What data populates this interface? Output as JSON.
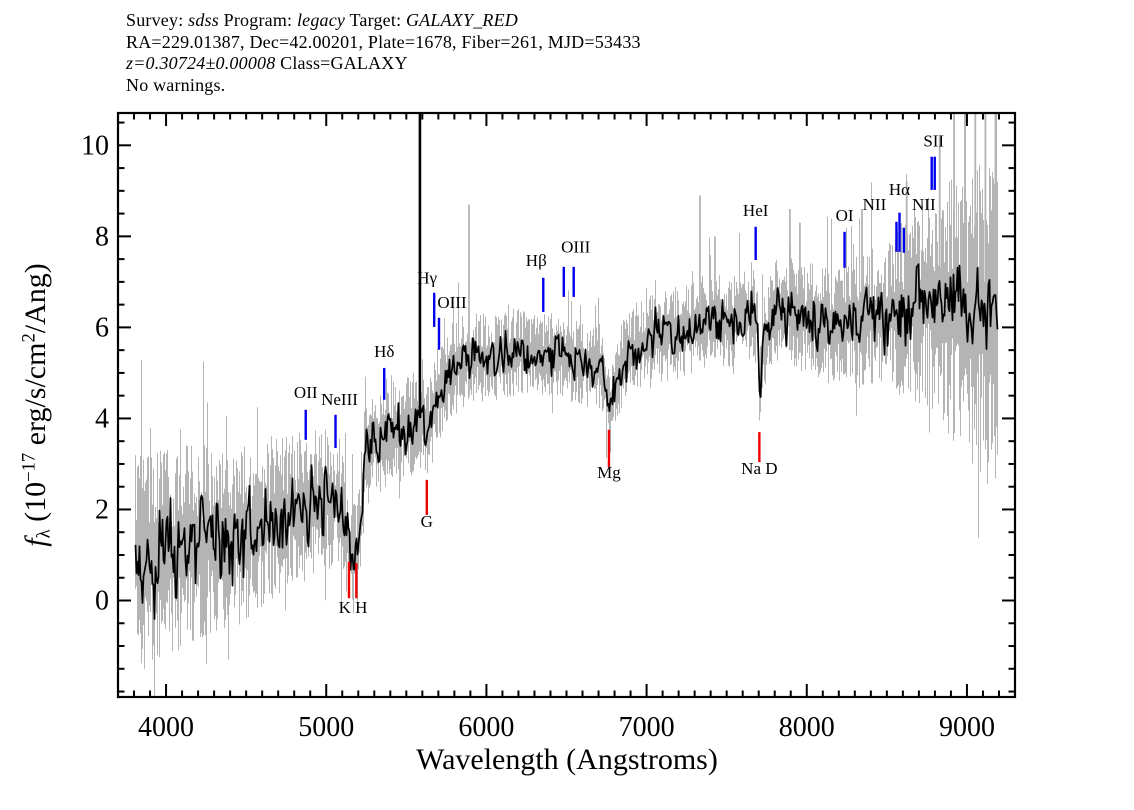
{
  "header": {
    "line1_segments": [
      {
        "text": "Survey: "
      },
      {
        "text": "sdss"
      },
      {
        "text": " Program: "
      },
      {
        "text": "legacy"
      },
      {
        "text": " Target: "
      },
      {
        "text": "GALAXY_RED"
      }
    ],
    "line2": "RA=229.01387, Dec=42.00201, Plate=1678, Fiber=261, MJD=53433",
    "line3_segments": [
      {
        "text": "z=0.30724±0.00008"
      },
      {
        "text": " Class=GALAXY"
      }
    ],
    "line4": "No warnings."
  },
  "chart_data": {
    "type": "line",
    "xlabel": "Wavelength (Angstroms)",
    "ylabel": "f_λ (10^−17 erg/s/cm^2/Ang)",
    "ylabel_segments": [
      {
        "t": "f"
      },
      {
        "t": "λ"
      },
      {
        "t": " (10"
      },
      {
        "t": "−17"
      },
      {
        "t": " erg/s/cm"
      },
      {
        "t": "2"
      },
      {
        "t": "/Ang)"
      }
    ],
    "xlim": [
      3700,
      9300
    ],
    "ylim": [
      -2.12,
      10.71
    ],
    "x_major_ticks": [
      4000,
      5000,
      6000,
      7000,
      8000,
      9000
    ],
    "x_tick_labels": [
      "4000",
      "5000",
      "6000",
      "7000",
      "8000",
      "9000"
    ],
    "x_minor_step": 100,
    "y_major_ticks": [
      0,
      2,
      4,
      6,
      8,
      10
    ],
    "y_tick_labels": [
      "0",
      "2",
      "4",
      "6",
      "8",
      "10"
    ],
    "y_minor_step": 0.5,
    "grid": false,
    "data_wavelength_range": [
      3800,
      9190
    ],
    "series": [
      {
        "name": "observed flux",
        "color": "#000000"
      },
      {
        "name": "flux uncertainty band",
        "color": "#b4b4b4"
      }
    ],
    "continuum_anchors": [
      [
        3740,
        0.8
      ],
      [
        3850,
        0.95
      ],
      [
        4000,
        1.05
      ],
      [
        4150,
        1.2
      ],
      [
        4300,
        1.4
      ],
      [
        4450,
        1.5
      ],
      [
        4600,
        1.65
      ],
      [
        4750,
        1.95
      ],
      [
        4900,
        2.1
      ],
      [
        5000,
        2.25
      ],
      [
        5080,
        2.1
      ],
      [
        5130,
        1.4
      ],
      [
        5160,
        0.95
      ],
      [
        5190,
        1.05
      ],
      [
        5215,
        1.9
      ],
      [
        5245,
        3.3
      ],
      [
        5320,
        3.6
      ],
      [
        5450,
        3.8
      ],
      [
        5560,
        3.95
      ],
      [
        5605,
        4.05
      ],
      [
        5640,
        3.75
      ],
      [
        5690,
        4.45
      ],
      [
        5770,
        5.05
      ],
      [
        5850,
        5.25
      ],
      [
        5950,
        5.35
      ],
      [
        6050,
        5.3
      ],
      [
        6150,
        5.45
      ],
      [
        6250,
        5.45
      ],
      [
        6350,
        5.35
      ],
      [
        6450,
        5.4
      ],
      [
        6550,
        5.25
      ],
      [
        6700,
        5.15
      ],
      [
        6742,
        4.7
      ],
      [
        6765,
        4.05
      ],
      [
        6790,
        4.7
      ],
      [
        6850,
        5.3
      ],
      [
        6950,
        5.6
      ],
      [
        7050,
        5.75
      ],
      [
        7150,
        5.85
      ],
      [
        7250,
        5.95
      ],
      [
        7350,
        6.1
      ],
      [
        7450,
        6.15
      ],
      [
        7550,
        6.2
      ],
      [
        7650,
        6.4
      ],
      [
        7692,
        6.1
      ],
      [
        7704,
        4.15
      ],
      [
        7718,
        5.6
      ],
      [
        7800,
        6.35
      ],
      [
        7900,
        6.3
      ],
      [
        8000,
        6.2
      ],
      [
        8100,
        6.15
      ],
      [
        8200,
        6.05
      ],
      [
        8300,
        6.15
      ],
      [
        8400,
        6.25
      ],
      [
        8500,
        6.3
      ],
      [
        8600,
        6.45
      ],
      [
        8700,
        6.55
      ],
      [
        8780,
        6.6
      ],
      [
        8860,
        6.45
      ],
      [
        8950,
        6.35
      ],
      [
        9050,
        6.3
      ],
      [
        9150,
        6.2
      ],
      [
        9190,
        6.1
      ]
    ],
    "flux_noise_sigma": [
      [
        3740,
        0.7
      ],
      [
        4100,
        0.6
      ],
      [
        4500,
        0.55
      ],
      [
        4900,
        0.45
      ],
      [
        5250,
        0.35
      ],
      [
        5700,
        0.3
      ],
      [
        6300,
        0.28
      ],
      [
        7000,
        0.28
      ],
      [
        7600,
        0.3
      ],
      [
        8100,
        0.33
      ],
      [
        8500,
        0.42
      ],
      [
        8780,
        0.55
      ],
      [
        9000,
        0.55
      ],
      [
        9190,
        0.6
      ]
    ],
    "error_band_sigma": [
      [
        3740,
        1.7
      ],
      [
        4100,
        1.45
      ],
      [
        4500,
        1.3
      ],
      [
        4900,
        1.05
      ],
      [
        5250,
        0.85
      ],
      [
        5700,
        0.7
      ],
      [
        6300,
        0.6
      ],
      [
        7000,
        0.65
      ],
      [
        7600,
        0.7
      ],
      [
        8100,
        0.85
      ],
      [
        8500,
        1.1
      ],
      [
        8800,
        1.6
      ],
      [
        9000,
        2.1
      ],
      [
        9190,
        2.4
      ]
    ],
    "sky_residual_spikes": [
      [
        5891,
        8.7
      ],
      [
        7333,
        8.9
      ],
      [
        7427,
        8.0
      ],
      [
        7895,
        8.6
      ],
      [
        7957,
        8.3
      ],
      [
        8345,
        8.6
      ],
      [
        8624,
        9.2
      ],
      [
        8830,
        10.2
      ],
      [
        8920,
        11.5
      ],
      [
        8988,
        11.5
      ],
      [
        9052,
        11.3
      ],
      [
        9115,
        11.5
      ],
      [
        9178,
        11.0
      ]
    ],
    "sky_line_spike": {
      "wavelength": 5585,
      "top_flux": 11
    },
    "marker_colors": {
      "emission": "#0000ee",
      "absorption": "#ee0000"
    },
    "line_markers": [
      {
        "label": "OII",
        "type": "emission",
        "wavelength": 4872,
        "tick_flux": [
          4.19,
          3.53
        ],
        "label_flux": 4.45,
        "label_dx": 0
      },
      {
        "label": "NeIII",
        "type": "emission",
        "wavelength": 5058,
        "tick_flux": [
          4.08,
          3.35
        ],
        "label_flux": 4.3,
        "label_dx": 4
      },
      {
        "label": "Hδ",
        "type": "emission",
        "wavelength": 5362,
        "tick_flux": [
          5.11,
          4.41
        ],
        "label_flux": 5.35,
        "label_dx": 0
      },
      {
        "label": "Hγ",
        "type": "emission",
        "wavelength": 5674,
        "tick_flux": [
          6.76,
          6.01
        ],
        "label_flux": 6.96,
        "label_dx": -7
      },
      {
        "label": "OIII",
        "type": "emission",
        "wavelength": 5704,
        "tick_flux": [
          6.21,
          5.51
        ],
        "label_flux": 6.43,
        "label_dx": 13
      },
      {
        "label": "Hβ",
        "type": "emission",
        "wavelength": 6355,
        "tick_flux": [
          7.09,
          6.34
        ],
        "label_flux": 7.35,
        "label_dx": -7
      },
      {
        "label": "",
        "type": "emission",
        "wavelength": 6483,
        "tick_flux": [
          7.33,
          6.67
        ],
        "label_flux": 0,
        "label_dx": 0
      },
      {
        "label": "OIII",
        "type": "emission",
        "wavelength": 6545,
        "tick_flux": [
          7.33,
          6.67
        ],
        "label_flux": 7.64,
        "label_dx": 2
      },
      {
        "label": "HeI",
        "type": "emission",
        "wavelength": 7681,
        "tick_flux": [
          8.21,
          7.48
        ],
        "label_flux": 8.45,
        "label_dx": 0
      },
      {
        "label": "OI",
        "type": "emission",
        "wavelength": 8236,
        "tick_flux": [
          8.1,
          7.31
        ],
        "label_flux": 8.34,
        "label_dx": 0
      },
      {
        "label": "NII",
        "type": "emission",
        "wavelength": 8560,
        "tick_flux": [
          8.32,
          7.66
        ],
        "label_flux": 8.58,
        "label_dx": -22
      },
      {
        "label": "Hα",
        "type": "emission",
        "wavelength": 8579,
        "tick_flux": [
          8.52,
          7.66
        ],
        "label_flux": 8.91,
        "label_dx": 0
      },
      {
        "label": "NII",
        "type": "emission",
        "wavelength": 8606,
        "tick_flux": [
          8.19,
          7.64
        ],
        "label_flux": 8.58,
        "label_dx": 20
      },
      {
        "label": "SII",
        "type": "emission",
        "wavelength": 8780,
        "tick_flux": [
          9.75,
          9.02
        ],
        "label_flux": 9.97,
        "label_dx": 2
      },
      {
        "label": "",
        "type": "emission",
        "wavelength": 8799,
        "tick_flux": [
          9.75,
          9.02
        ],
        "label_flux": 0,
        "label_dx": 0
      },
      {
        "label": "K H",
        "type": "absorption",
        "wavelength": 5142,
        "tick_flux": [
          0.85,
          0.05
        ],
        "label_flux": -0.27,
        "label_dx": 4
      },
      {
        "label": "",
        "type": "absorption",
        "wavelength": 5188,
        "tick_flux": [
          0.82,
          0.05
        ],
        "label_flux": 0,
        "label_dx": 0
      },
      {
        "label": "G",
        "type": "absorption",
        "wavelength": 5628,
        "tick_flux": [
          2.65,
          1.88
        ],
        "label_flux": 1.62,
        "label_dx": 0
      },
      {
        "label": "Mg",
        "type": "absorption",
        "wavelength": 6765,
        "tick_flux": [
          3.75,
          2.93
        ],
        "label_flux": 2.69,
        "label_dx": 0
      },
      {
        "label": "Na D",
        "type": "absorption",
        "wavelength": 7704,
        "tick_flux": [
          3.7,
          3.04
        ],
        "label_flux": 2.78,
        "label_dx": 0
      }
    ]
  }
}
